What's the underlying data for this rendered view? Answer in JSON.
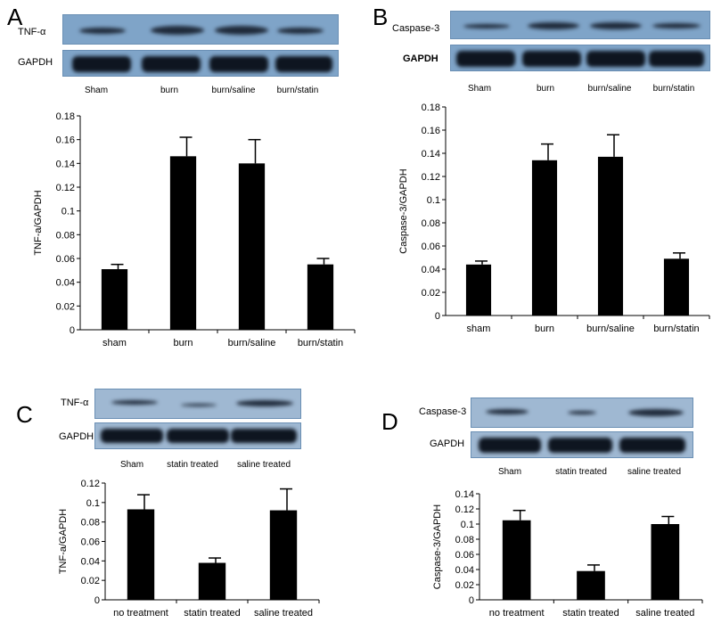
{
  "chart_data": [
    {
      "panel": "A",
      "type": "bar",
      "blot": {
        "target_label": "TNF-α",
        "loading_label": "GAPDH",
        "lane_labels": [
          "Sham",
          "burn",
          "burn/saline",
          "burn/statin"
        ]
      },
      "categories": [
        "sham",
        "burn",
        "burn/saline",
        "burn/statin"
      ],
      "values": [
        0.051,
        0.146,
        0.14,
        0.055
      ],
      "errors": [
        0.004,
        0.016,
        0.02,
        0.005
      ],
      "ylabel": "TNF-a/GAPDH",
      "ylim": [
        0,
        0.18
      ],
      "yticks": [
        "0",
        "0.02",
        "0.04",
        "0.06",
        "0.08",
        "0.1",
        "0.12",
        "0.14",
        "0.16",
        "0.18"
      ]
    },
    {
      "panel": "B",
      "type": "bar",
      "blot": {
        "target_label": "Caspase-3",
        "loading_label": "GAPDH",
        "lane_labels": [
          "Sham",
          "burn",
          "burn/saline",
          "burn/statin"
        ]
      },
      "categories": [
        "sham",
        "burn",
        "burn/saline",
        "burn/statin"
      ],
      "values": [
        0.044,
        0.134,
        0.137,
        0.049
      ],
      "errors": [
        0.003,
        0.014,
        0.019,
        0.005
      ],
      "ylabel": "Caspase-3/GAPDH",
      "ylim": [
        0,
        0.18
      ],
      "yticks": [
        "0",
        "0.02",
        "0.04",
        "0.06",
        "0.08",
        "0.1",
        "0.12",
        "0.14",
        "0.16",
        "0.18"
      ]
    },
    {
      "panel": "C",
      "type": "bar",
      "blot": {
        "target_label": "TNF-α",
        "loading_label": "GAPDH",
        "lane_labels": [
          "Sham",
          "statin treated",
          "saline treated"
        ]
      },
      "categories": [
        "no treatment",
        "statin treated",
        "saline treated"
      ],
      "values": [
        0.093,
        0.038,
        0.092
      ],
      "errors": [
        0.015,
        0.005,
        0.022
      ],
      "ylabel": "TNF-a/GAPDH",
      "ylim": [
        0,
        0.12
      ],
      "yticks": [
        "0",
        "0.02",
        "0.04",
        "0.06",
        "0.08",
        "0.1",
        "0.12"
      ]
    },
    {
      "panel": "D",
      "type": "bar",
      "blot": {
        "target_label": "Caspase-3",
        "loading_label": "GAPDH",
        "lane_labels": [
          "Sham",
          "statin treated",
          "saline treated"
        ]
      },
      "categories": [
        "no treatment",
        "statin treated",
        "saline treated"
      ],
      "values": [
        0.105,
        0.038,
        0.1
      ],
      "errors": [
        0.013,
        0.008,
        0.01
      ],
      "ylabel": "Caspase-3/GAPDH",
      "ylim": [
        0,
        0.14
      ],
      "yticks": [
        "0",
        "0.02",
        "0.04",
        "0.06",
        "0.08",
        "0.1",
        "0.12",
        "0.14"
      ]
    }
  ]
}
